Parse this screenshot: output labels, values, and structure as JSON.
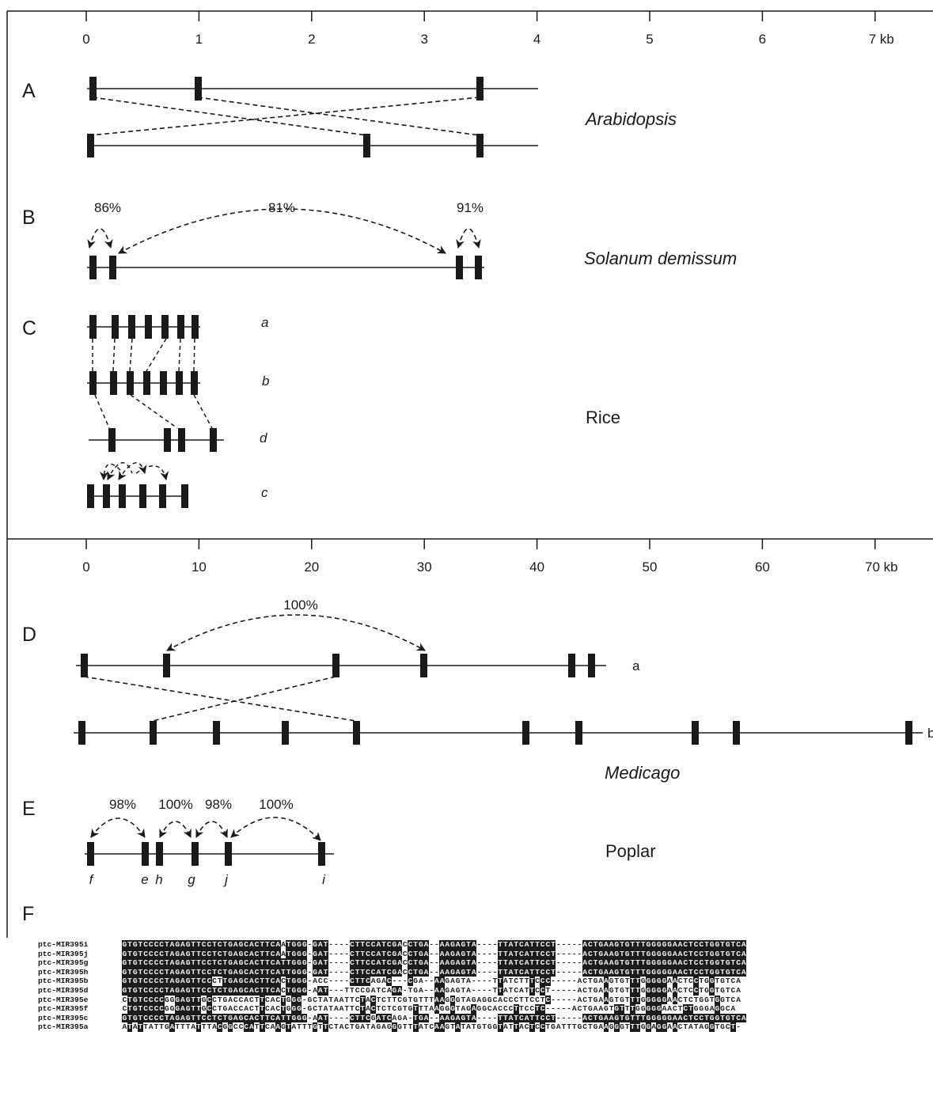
{
  "axes": {
    "top": {
      "ticks": [
        "0",
        "1",
        "2",
        "3",
        "4",
        "5",
        "6",
        "7 kb"
      ]
    },
    "bottom": {
      "ticks": [
        "0",
        "10",
        "20",
        "30",
        "40",
        "50",
        "60",
        "70 kb"
      ]
    }
  },
  "panels": {
    "A": {
      "letter": "A",
      "species": "Arabidopsis"
    },
    "B": {
      "letter": "B",
      "species": "Solanum demissum",
      "identities": [
        "86%",
        "81%",
        "91%"
      ]
    },
    "C": {
      "letter": "C",
      "species": "Rice",
      "rows": [
        "a",
        "b",
        "d",
        "c"
      ]
    },
    "D": {
      "letter": "D",
      "species": "Medicago",
      "identity": "100%",
      "rows": [
        "a",
        "b"
      ]
    },
    "E": {
      "letter": "E",
      "species": "Poplar",
      "identities": [
        "98%",
        "100%",
        "98%",
        "100%"
      ],
      "genes": [
        "f",
        "e",
        "h",
        "g",
        "j",
        "i"
      ]
    },
    "F": {
      "letter": "F"
    }
  },
  "alignment": {
    "rows": [
      {
        "name": "ptc-MIR395i",
        "seq": "GTGTCCCCTAGAGTTCCTCTGAGCACTTCAATGGG-GAT----CTTCCATCGACCTGA--AAGAGTA----TTATCATTCCT-----ACTGAAGTGTTTGGGGGAACTCCTGGTGTCA"
      },
      {
        "name": "ptc-MIR395j",
        "seq": "GTGTCCCCTAGAGTTCCTCTGAGCACTTCAATGGG-GAT----CTTCCATCGACCTGA--AAGAGTA----TTATCATTCCT-----ACTGAAGTGTTTGGGGGAACTCCTGGTGTCA"
      },
      {
        "name": "ptc-MIR395g",
        "seq": "GTGTCCCCTAGAGTTCCTCTGAGCACTTCATTGGG-GAT----CTTCCATCGACCTGA--AAGAGTA----TTATCATTCCT-----ACTGAAGTGTTTGGGGGAACTCCTGGTGTCA"
      },
      {
        "name": "ptc-MIR395h",
        "seq": "GTGTCCCCTAGAGTTCCTCTGAGCACTTCATTGGG-GAT----CTTCCATCGACCTGA--AAGAGTA----TTATCATTCCT-----ACTGAAGTGTTTGGGGGAACTCCTGGTGTCA"
      },
      {
        "name": "ptc-MIR395b",
        "seq": "GTGTCCCCTAGAGTTCCCTTGAGCACTTCACTGGG-ACC----CTTCAGAC---CGA--AAGAGTA----TTATCTTTCCC-----ACTGAAGTGTTTGGGGGAACTCCTGGTGTCA"
      },
      {
        "name": "ptc-MIR395d",
        "seq": "GTGTCCCCTAGAGTTCCTCTGAGCACTTCACTGGG-AAT---TTCCGATCAGA-TGA--AAGAGTA----TTATCATTCCT-----ACTGAAGTGTTTGGGGGAACTCCTGGTGTCA"
      },
      {
        "name": "ptc-MIR395e",
        "seq": "CTGTCCCCGGGAGTTGCCTGACCACTTCACTGGG-GCTATAATTCTACTCTTCGTGTTTAAGGGTAGAGGCACCCTTCCTC-----ACTGAAGTGTTTGGGGGAACTCTGGTGGTCA"
      },
      {
        "name": "ptc-MIR395f",
        "seq": "CTGTCCCCGGGAGTTGCCTGACCACTTCACTGGG-GCTATAATTCTACTCTCGTGTTTAAGGGTAGAGGCACCCTTCCTC-----ACTGAAGTGTTTGGGGGAACTCTGGGAGGCA"
      },
      {
        "name": "ptc-MIR395c",
        "seq": "GTGTCCCCTAGAGTTCCTCTGAGCACTTCATTGGG-AAT----CTTCGATCAGA-TGA--AAGAGTA----TTATCATTCCT-----ACTGAAGTGTTTGGGGGAACTCCTGGTGTCA"
      },
      {
        "name": "ptc-MIR395a",
        "seq": "ATATTATTGATTTATTTACGGCCCATTCAAGTATTTGTTCTACTGATAGAGGGTTTATCAAGTATATGTGGTATTACTCCTGATTTGCTGAAGGGTTTGGAGGAACTATAGGTGCT-"
      }
    ]
  }
}
